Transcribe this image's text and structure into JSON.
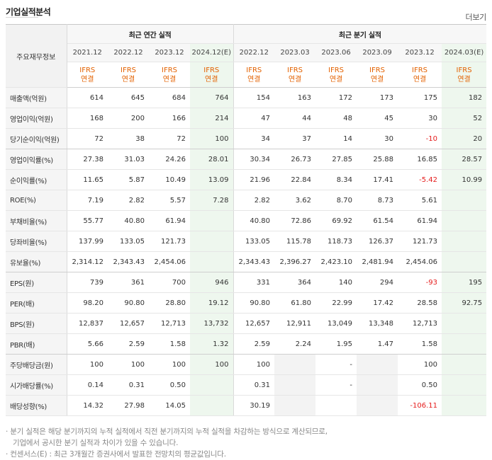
{
  "title": "기업실적분석",
  "more_link": "더보기",
  "header": {
    "label": "주요재무정보",
    "annual_group": "최근 연간 실적",
    "quarter_group": "최근 분기 실적",
    "periods": [
      "2021.12",
      "2022.12",
      "2023.12",
      "2024.12(E)",
      "2022.12",
      "2023.03",
      "2023.06",
      "2023.09",
      "2023.12",
      "2024.03(E)"
    ],
    "ifrs_top": "IFRS",
    "ifrs_bottom": "연결"
  },
  "rows": [
    {
      "label": "매출액(억원)",
      "values": [
        "614",
        "645",
        "684",
        "764",
        "154",
        "163",
        "172",
        "173",
        "175",
        "182"
      ]
    },
    {
      "label": "영업이익(억원)",
      "values": [
        "168",
        "200",
        "166",
        "214",
        "47",
        "44",
        "48",
        "45",
        "30",
        "52"
      ]
    },
    {
      "label": "당기순이익(억원)",
      "values": [
        "72",
        "38",
        "72",
        "100",
        "34",
        "37",
        "14",
        "30",
        "-10",
        "20"
      ]
    },
    {
      "label": "영업이익률(%)",
      "values": [
        "27.38",
        "31.03",
        "24.26",
        "28.01",
        "30.34",
        "26.73",
        "27.85",
        "25.88",
        "16.85",
        "28.57"
      ]
    },
    {
      "label": "순이익률(%)",
      "values": [
        "11.65",
        "5.87",
        "10.49",
        "13.09",
        "21.96",
        "22.84",
        "8.34",
        "17.41",
        "-5.42",
        "10.99"
      ]
    },
    {
      "label": "ROE(%)",
      "values": [
        "7.19",
        "2.82",
        "5.57",
        "7.28",
        "2.82",
        "3.62",
        "8.70",
        "8.73",
        "5.61",
        ""
      ]
    },
    {
      "label": "부채비율(%)",
      "values": [
        "55.77",
        "40.80",
        "61.94",
        "",
        "40.80",
        "72.86",
        "69.92",
        "61.54",
        "61.94",
        ""
      ]
    },
    {
      "label": "당좌비율(%)",
      "values": [
        "137.99",
        "133.05",
        "121.73",
        "",
        "133.05",
        "115.78",
        "118.73",
        "126.37",
        "121.73",
        ""
      ]
    },
    {
      "label": "유보율(%)",
      "values": [
        "2,314.12",
        "2,343.43",
        "2,454.06",
        "",
        "2,343.43",
        "2,396.27",
        "2,423.10",
        "2,481.94",
        "2,454.06",
        ""
      ]
    },
    {
      "label": "EPS(원)",
      "values": [
        "739",
        "361",
        "700",
        "946",
        "331",
        "364",
        "140",
        "294",
        "-93",
        "195"
      ]
    },
    {
      "label": "PER(배)",
      "values": [
        "98.20",
        "90.80",
        "28.80",
        "19.12",
        "90.80",
        "61.80",
        "22.99",
        "17.42",
        "28.58",
        "92.75"
      ]
    },
    {
      "label": "BPS(원)",
      "values": [
        "12,837",
        "12,657",
        "12,713",
        "13,732",
        "12,657",
        "12,911",
        "13,049",
        "13,348",
        "12,713",
        ""
      ]
    },
    {
      "label": "PBR(배)",
      "values": [
        "5.66",
        "2.59",
        "1.58",
        "1.32",
        "2.59",
        "2.24",
        "1.95",
        "1.47",
        "1.58",
        ""
      ]
    },
    {
      "label": "주당배당금(원)",
      "values": [
        "100",
        "100",
        "100",
        "100",
        "100",
        "",
        "-",
        "",
        "100",
        ""
      ]
    },
    {
      "label": "시가배당률(%)",
      "values": [
        "0.14",
        "0.31",
        "0.50",
        "",
        "0.31",
        "",
        "-",
        "",
        "0.50",
        ""
      ]
    },
    {
      "label": "배당성향(%)",
      "values": [
        "14.32",
        "27.98",
        "14.05",
        "",
        "30.19",
        "",
        "",
        "",
        "-106.11",
        ""
      ]
    }
  ],
  "notes": {
    "line1": "분기 실적은 해당 분기까지의 누적 실적에서 직전 분기까지의 누적 실적을 차감하는 방식으로 계산되므로,",
    "line2": "기업에서 공시한 분기 실적과 차이가 있을 수 있습니다.",
    "line3": "컨센서스(E) : 최근 3개월간 증권사에서 발표한 전망치의 평균값입니다."
  }
}
